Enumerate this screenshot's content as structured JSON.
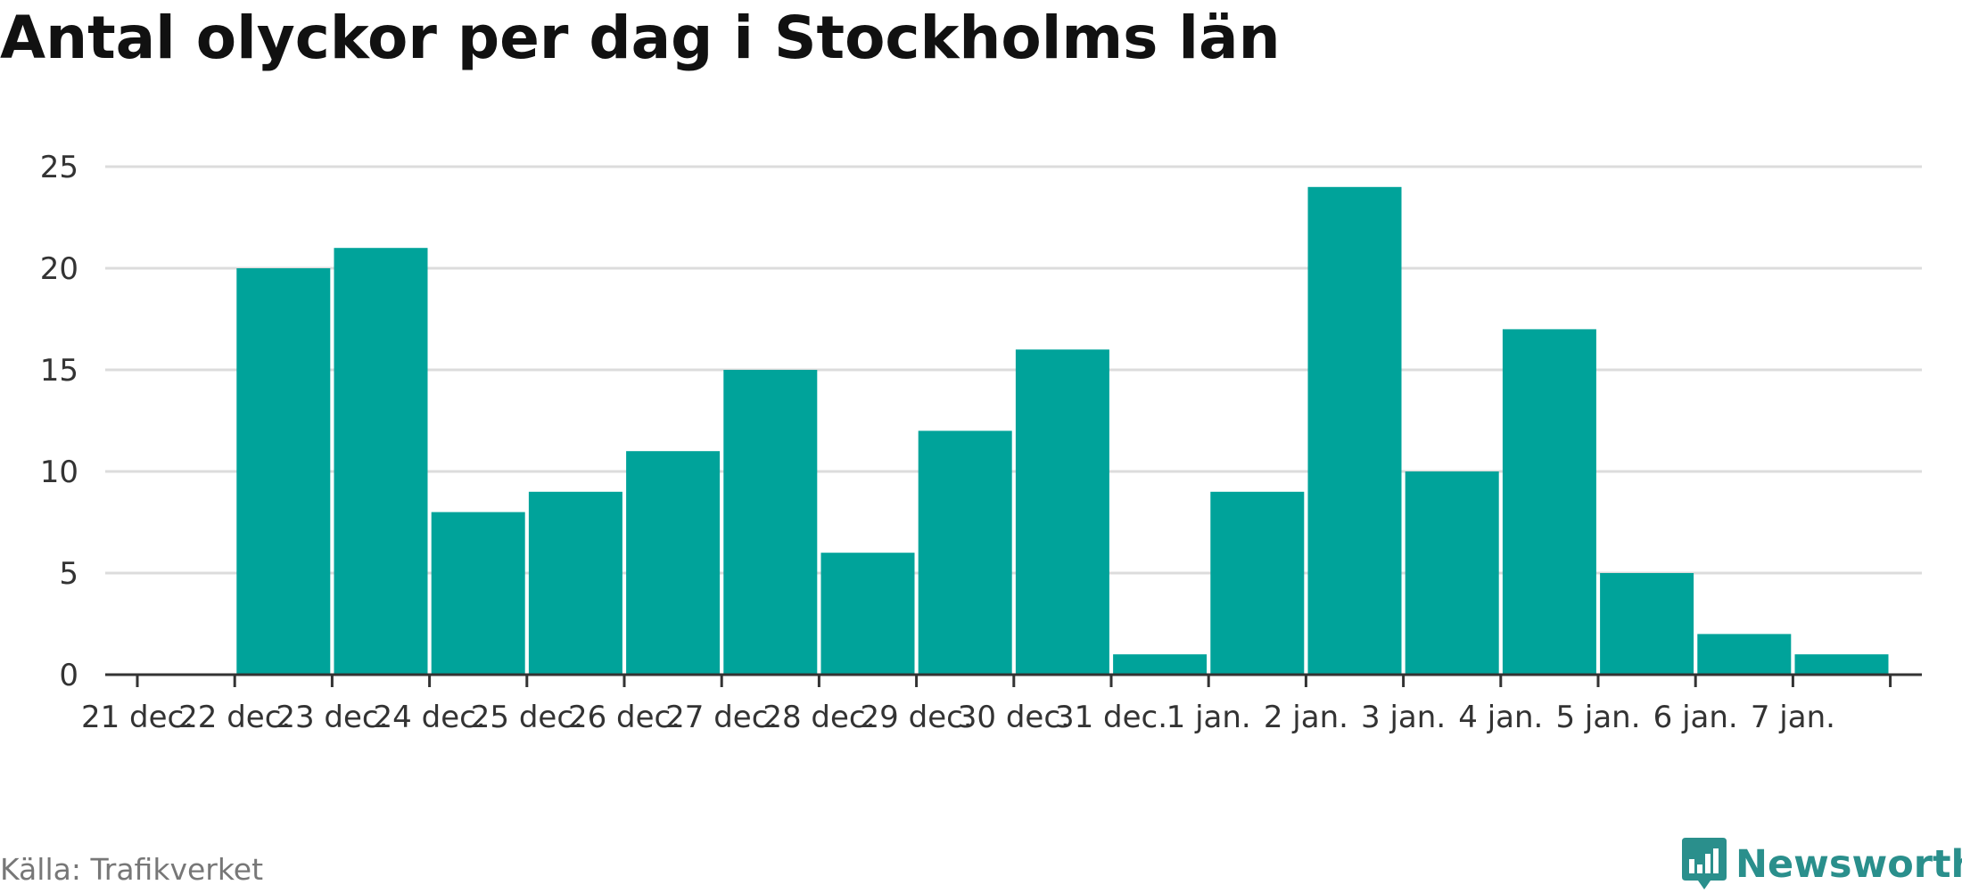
{
  "chart_data": {
    "type": "bar",
    "title": "Antal olyckor per dag i Stockholms län",
    "xlabel": "",
    "ylabel": "",
    "categories": [
      "22 dec.",
      "23 dec.",
      "24 dec.",
      "25 dec.",
      "26 dec.",
      "27 dec.",
      "28 dec.",
      "29 dec.",
      "30 dec.",
      "31 dec.",
      "1 jan.",
      "2 jan.",
      "3 jan.",
      "4 jan.",
      "5 jan.",
      "6 jan.",
      "7 jan."
    ],
    "x_tick_labels": [
      "21 dec.",
      "22 dec.",
      "23 dec.",
      "24 dec.",
      "25 dec.",
      "26 dec.",
      "27 dec.",
      "28 dec.",
      "29 dec.",
      "30 dec.",
      "31 dec.",
      "1 jan.",
      "2 jan.",
      "3 jan.",
      "4 jan.",
      "5 jan.",
      "6 jan.",
      "7 jan."
    ],
    "values": [
      20,
      21,
      8,
      9,
      11,
      15,
      6,
      12,
      16,
      1,
      9,
      24,
      10,
      17,
      5,
      2,
      1
    ],
    "ylim": [
      0,
      25
    ],
    "y_ticks": [
      0,
      5,
      10,
      15,
      20,
      25
    ],
    "grid": true,
    "bar_color": "#00a39a"
  },
  "footer": {
    "source": "Källa: Trafikverket",
    "brand": "Newsworthy"
  },
  "brand_color": "#2a8f8c"
}
